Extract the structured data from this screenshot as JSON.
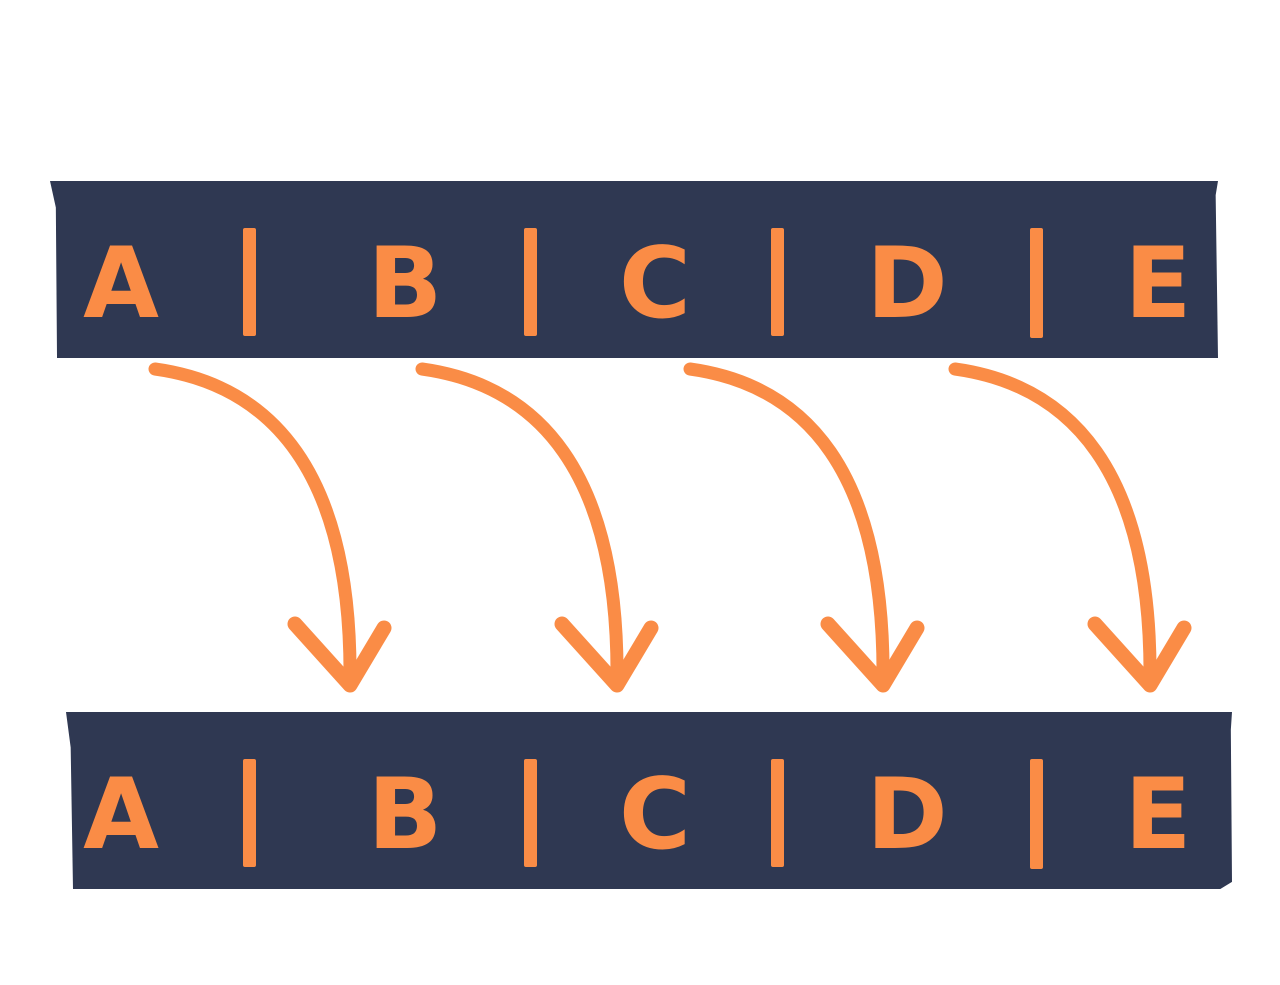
{
  "colors": {
    "background": "#ffffff",
    "band": "#2f3852",
    "accent": "#fa8c46"
  },
  "top_row": {
    "letters": [
      "A",
      "B",
      "C",
      "D",
      "E"
    ]
  },
  "bottom_row": {
    "letters": [
      "A",
      "B",
      "C",
      "D",
      "E"
    ]
  },
  "arrows": [
    {
      "from": "A",
      "to": "B"
    },
    {
      "from": "B",
      "to": "C"
    },
    {
      "from": "C",
      "to": "D"
    },
    {
      "from": "D",
      "to": "E"
    }
  ]
}
